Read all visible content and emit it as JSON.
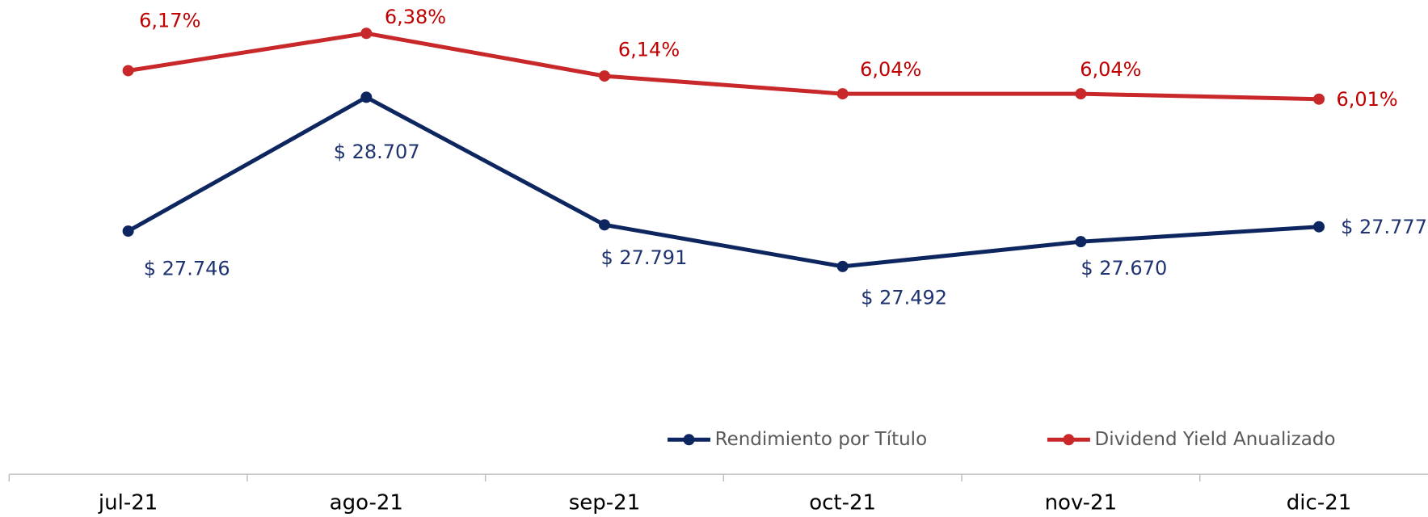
{
  "chart_data": {
    "type": "line",
    "categories": [
      "jul-21",
      "ago-21",
      "sep-21",
      "oct-21",
      "nov-21",
      "dic-21"
    ],
    "series": [
      {
        "name": "Rendimiento por Título",
        "color": "#0e2660",
        "values": [
          27746,
          28707,
          27791,
          27492,
          27670,
          27777
        ],
        "value_labels": [
          "$ 27.746",
          "$ 28.707",
          "$ 27.791",
          "$ 27.492",
          "$ 27.670",
          "$ 27.777"
        ]
      },
      {
        "name": "Dividend Yield Anualizado",
        "color": "#c8282a",
        "axis": "y2",
        "values": [
          6.17,
          6.38,
          6.14,
          6.04,
          6.04,
          6.01
        ],
        "value_labels": [
          "6,17%",
          "6,38%",
          "6,14%",
          "6,04%",
          "6,04%",
          "6,01%"
        ]
      }
    ],
    "ylim": [
      26000,
      29000
    ],
    "y2lim": [
      3.9,
      6.25
    ],
    "legend": "bottom-right"
  }
}
